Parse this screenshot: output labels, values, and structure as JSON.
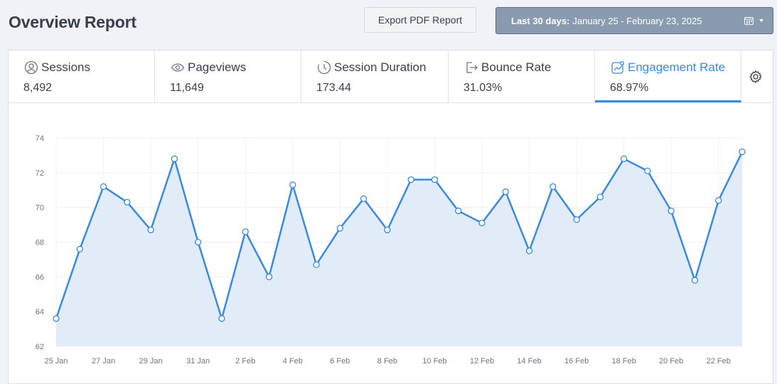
{
  "header": {
    "title": "Overview Report",
    "export_label": "Export PDF Report",
    "date_range_prefix": "Last 30 days:",
    "date_range": "January 25 - February 23, 2025",
    "calendar_icon": "calendar-icon",
    "caret_icon": "caret-down-icon"
  },
  "tabs": [
    {
      "label": "Sessions",
      "value": "8,492",
      "icon": "user-circle-icon"
    },
    {
      "label": "Pageviews",
      "value": "11,649",
      "icon": "eye-icon"
    },
    {
      "label": "Session Duration",
      "value": "173.44",
      "icon": "clock-icon"
    },
    {
      "label": "Bounce Rate",
      "value": "31.03%",
      "icon": "exit-icon"
    },
    {
      "label": "Engagement Rate",
      "value": "68.97%",
      "icon": "trend-chart-icon",
      "active": true
    }
  ],
  "settings_icon": "gear-icon",
  "colors": {
    "accent": "#3b8ad9",
    "fill": "#deeaf7",
    "date_button": "#8a9bb0"
  },
  "chart_data": {
    "type": "area",
    "x": [
      "25 Jan",
      "26 Jan",
      "27 Jan",
      "28 Jan",
      "29 Jan",
      "30 Jan",
      "31 Jan",
      "1 Feb",
      "2 Feb",
      "3 Feb",
      "4 Feb",
      "5 Feb",
      "6 Feb",
      "7 Feb",
      "8 Feb",
      "9 Feb",
      "10 Feb",
      "11 Feb",
      "12 Feb",
      "13 Feb",
      "14 Feb",
      "15 Feb",
      "16 Feb",
      "17 Feb",
      "18 Feb",
      "19 Feb",
      "20 Feb",
      "21 Feb",
      "22 Feb",
      "23 Feb"
    ],
    "xticks": [
      "25 Jan",
      "27 Jan",
      "29 Jan",
      "31 Jan",
      "2 Feb",
      "4 Feb",
      "6 Feb",
      "8 Feb",
      "10 Feb",
      "12 Feb",
      "14 Feb",
      "16 Feb",
      "18 Feb",
      "20 Feb",
      "22 Feb"
    ],
    "values": [
      63.6,
      67.6,
      71.2,
      70.3,
      68.7,
      72.8,
      68.0,
      63.6,
      68.6,
      66.0,
      71.3,
      66.7,
      68.8,
      70.5,
      68.7,
      71.6,
      71.6,
      69.8,
      69.1,
      70.9,
      67.5,
      71.2,
      69.3,
      70.6,
      72.8,
      72.1,
      69.8,
      65.8,
      70.4,
      73.2
    ],
    "yticks": [
      62,
      64,
      66,
      68,
      70,
      72,
      74
    ],
    "ylim": [
      62,
      74
    ],
    "grid": true,
    "series_color": "#3b8ad9"
  }
}
